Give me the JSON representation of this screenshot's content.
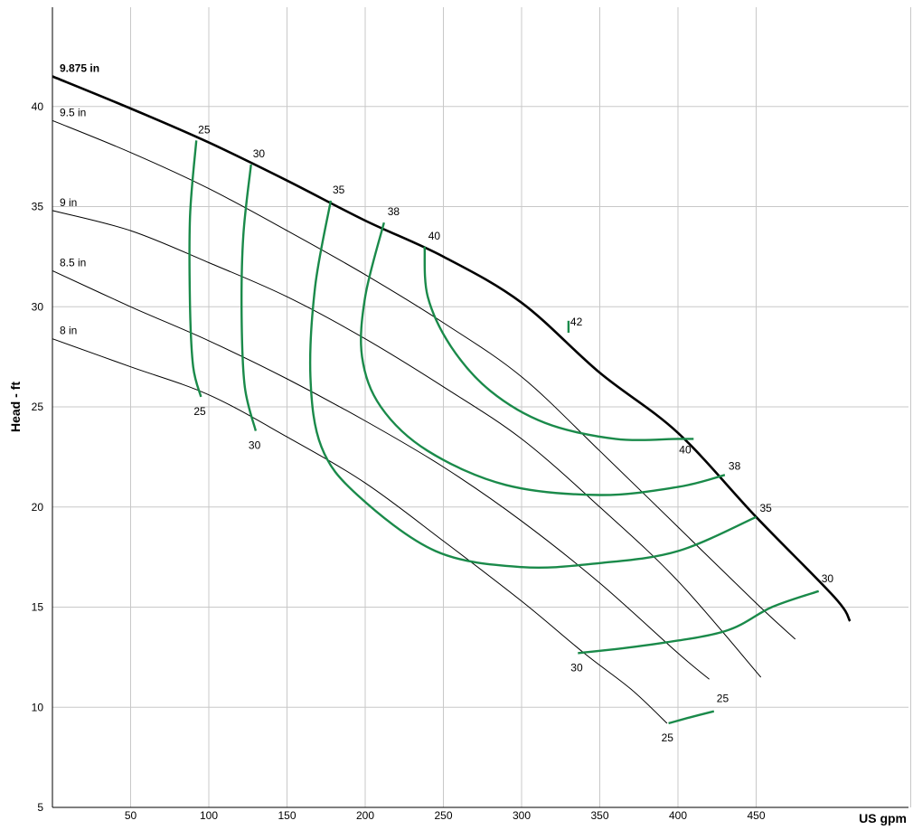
{
  "chart_data": {
    "type": "line",
    "xlabel": "US gpm",
    "ylabel": "Head - ft",
    "xlim": [
      0,
      550
    ],
    "ylim": [
      5,
      45
    ],
    "x_ticks": [
      50,
      100,
      150,
      200,
      250,
      300,
      350,
      400,
      450
    ],
    "y_ticks": [
      5,
      10,
      15,
      20,
      25,
      30,
      35,
      40
    ],
    "grid": true,
    "colors": {
      "impeller": "#000000",
      "efficiency": "#1a8a4a",
      "grid": "#c8c8c8"
    },
    "impeller_curves": [
      {
        "name": "9.875 in",
        "points": [
          [
            0,
            41.5
          ],
          [
            50,
            39.9
          ],
          [
            100,
            38.2
          ],
          [
            150,
            36.3
          ],
          [
            200,
            34.3
          ],
          [
            250,
            32.5
          ],
          [
            300,
            30.2
          ],
          [
            350,
            26.7
          ],
          [
            400,
            23.7
          ],
          [
            450,
            19.5
          ],
          [
            500,
            15.5
          ],
          [
            510,
            14.3
          ]
        ]
      },
      {
        "name": "9.5 in",
        "points": [
          [
            0,
            39.3
          ],
          [
            50,
            37.7
          ],
          [
            100,
            35.9
          ],
          [
            150,
            33.8
          ],
          [
            200,
            31.6
          ],
          [
            250,
            29.2
          ],
          [
            300,
            26.5
          ],
          [
            350,
            22.8
          ],
          [
            400,
            19.0
          ],
          [
            450,
            15.2
          ],
          [
            475,
            13.4
          ]
        ]
      },
      {
        "name": "9 in",
        "points": [
          [
            0,
            34.8
          ],
          [
            50,
            33.8
          ],
          [
            100,
            32.2
          ],
          [
            150,
            30.5
          ],
          [
            200,
            28.4
          ],
          [
            250,
            26.0
          ],
          [
            300,
            23.4
          ],
          [
            350,
            20.0
          ],
          [
            400,
            16.3
          ],
          [
            453,
            11.5
          ]
        ]
      },
      {
        "name": "8.5 in",
        "points": [
          [
            0,
            31.8
          ],
          [
            50,
            30.0
          ],
          [
            100,
            28.3
          ],
          [
            150,
            26.4
          ],
          [
            200,
            24.3
          ],
          [
            250,
            22.0
          ],
          [
            300,
            19.3
          ],
          [
            350,
            16.2
          ],
          [
            400,
            12.7
          ],
          [
            420,
            11.4
          ]
        ]
      },
      {
        "name": "8 in",
        "points": [
          [
            0,
            28.4
          ],
          [
            50,
            27.0
          ],
          [
            100,
            25.6
          ],
          [
            150,
            23.5
          ],
          [
            200,
            21.2
          ],
          [
            250,
            18.3
          ],
          [
            300,
            15.3
          ],
          [
            340,
            12.7
          ],
          [
            370,
            10.9
          ],
          [
            393,
            9.2
          ]
        ]
      }
    ],
    "efficiency_curves": [
      {
        "name": "25",
        "label_top": "25",
        "label_bottom": "25",
        "points": [
          [
            92,
            38.3
          ],
          [
            88,
            34.5
          ],
          [
            88,
            30.0
          ],
          [
            90,
            27.0
          ],
          [
            95,
            25.5
          ]
        ]
      },
      {
        "name": "30",
        "label_top": "30",
        "label_bottom": "30",
        "points": [
          [
            127,
            37.1
          ],
          [
            122,
            33.5
          ],
          [
            121,
            29.5
          ],
          [
            123,
            26.0
          ],
          [
            130,
            23.8
          ]
        ]
      },
      {
        "name": "35",
        "label_top": "35",
        "label_bottom": "",
        "points": [
          [
            178,
            35.3
          ],
          [
            168,
            31.0
          ],
          [
            165,
            26.5
          ],
          [
            172,
            23.0
          ],
          [
            195,
            20.6
          ],
          [
            245,
            17.8
          ],
          [
            300,
            17.0
          ],
          [
            350,
            17.2
          ],
          [
            400,
            17.8
          ],
          [
            450,
            19.5
          ]
        ]
      },
      {
        "name": "38",
        "label_top": "38",
        "label_bottom": "38",
        "points": [
          [
            212,
            34.2
          ],
          [
            200,
            30.5
          ],
          [
            198,
            27.5
          ],
          [
            210,
            25.0
          ],
          [
            240,
            22.8
          ],
          [
            290,
            21.1
          ],
          [
            350,
            20.6
          ],
          [
            400,
            21.0
          ],
          [
            430,
            21.6
          ]
        ]
      },
      {
        "name": "40",
        "label_top": "40",
        "label_bottom": "40",
        "points": [
          [
            238,
            33.0
          ],
          [
            240,
            30.5
          ],
          [
            255,
            28.0
          ],
          [
            280,
            25.8
          ],
          [
            315,
            24.2
          ],
          [
            360,
            23.4
          ],
          [
            400,
            23.4
          ],
          [
            410,
            23.4
          ]
        ]
      },
      {
        "name": "42",
        "label_top": "42",
        "label_bottom": "",
        "points": [
          [
            330,
            28.7
          ],
          [
            330,
            29.3
          ]
        ]
      },
      {
        "name": "30-low",
        "label_top": "30",
        "label_bottom": "30",
        "points": [
          [
            336,
            12.7
          ],
          [
            380,
            13.1
          ],
          [
            430,
            13.8
          ],
          [
            460,
            15.0
          ],
          [
            490,
            15.8
          ]
        ]
      },
      {
        "name": "25-low",
        "label_top": "25",
        "label_bottom": "25",
        "points": [
          [
            394,
            9.2
          ],
          [
            408,
            9.5
          ],
          [
            423,
            9.8
          ]
        ]
      }
    ]
  }
}
